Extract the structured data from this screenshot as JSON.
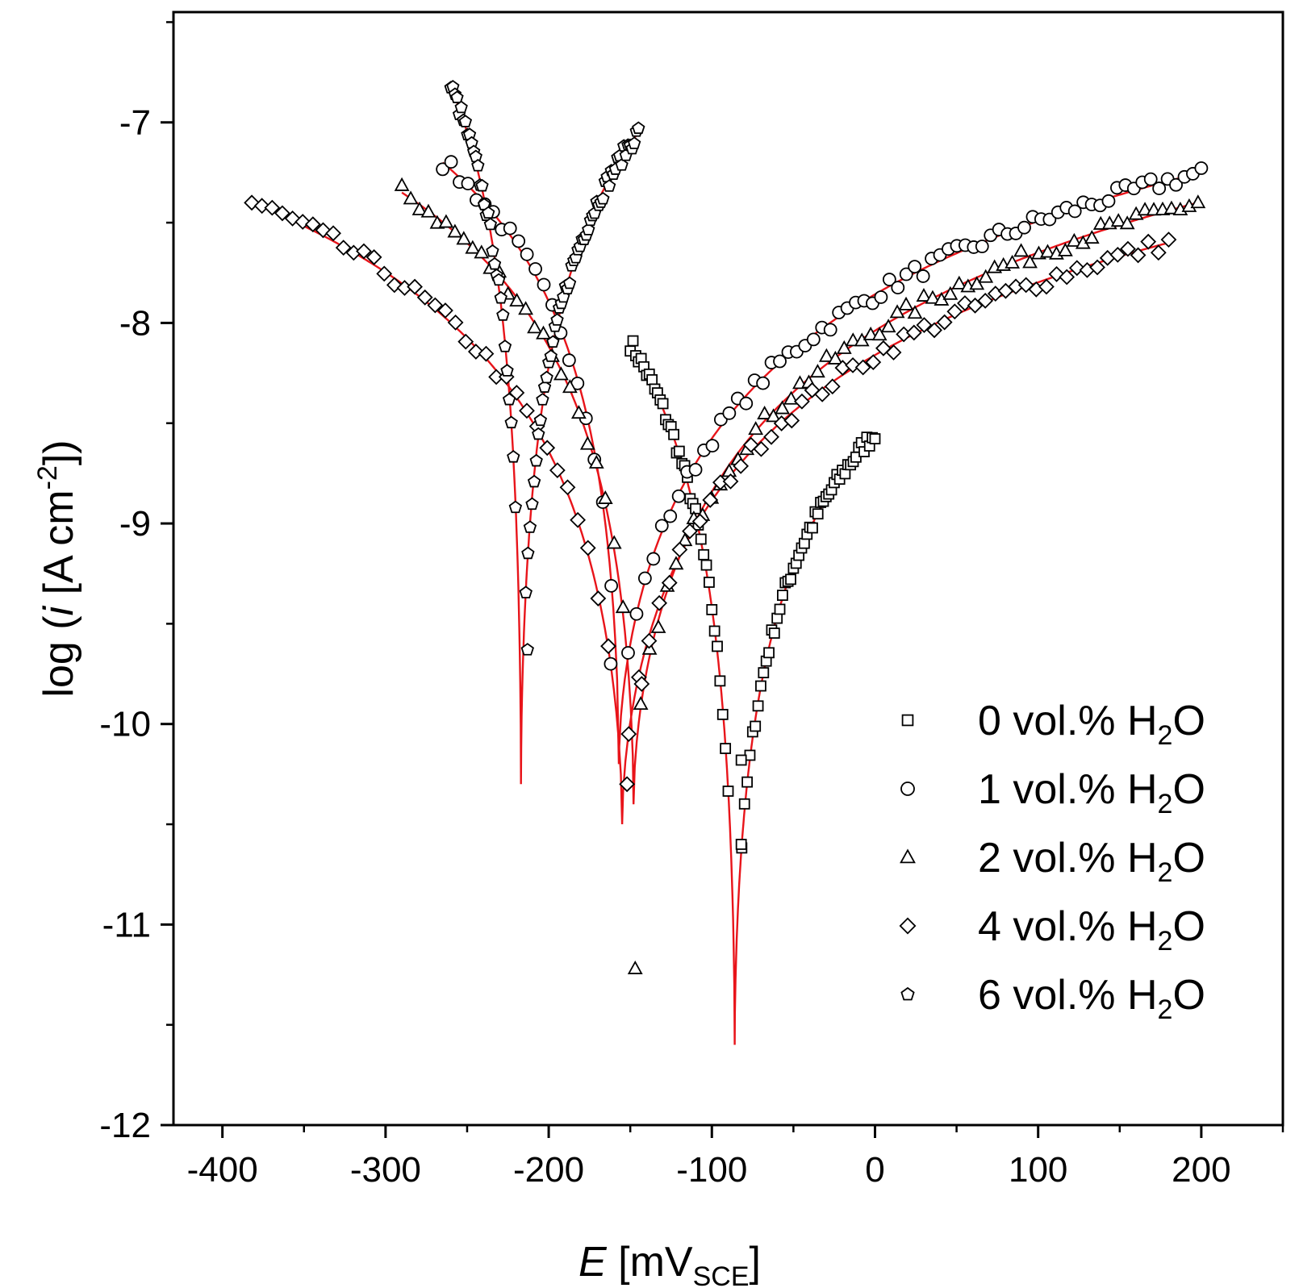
{
  "chart_data": {
    "type": "scatter",
    "title": "",
    "xlabel": {
      "main": "E",
      "unit_prefix": "[mV",
      "unit_sub": "SCE",
      "unit_suffix": "]"
    },
    "ylabel": {
      "prefix": "log (",
      "var": "i",
      "mid": " [A cm",
      "sup": "-2",
      "suffix": "])"
    },
    "xlim": [
      -430,
      250
    ],
    "ylim": [
      -12,
      -6.45
    ],
    "xticks": [
      -400,
      -300,
      -200,
      -100,
      0,
      100,
      200
    ],
    "xtick_labels": [
      "-400",
      "-300",
      "-200",
      "-100",
      "0",
      "100",
      "200"
    ],
    "yticks": [
      -12,
      -11,
      -10,
      -9,
      -8,
      -7
    ],
    "ytick_labels": [
      "-12",
      "-11",
      "-10",
      "-9",
      "-8",
      "-7"
    ],
    "fit_color": "#e8141a",
    "marker_color": "#000000",
    "legend_position": "lower-right",
    "series": [
      {
        "name": "0 vol.% H2O",
        "label_main": "0 vol.% H",
        "label_sub": "2",
        "label_tail": "O",
        "marker": "square",
        "ecorr": -86,
        "cathodic": {
          "start": -150,
          "end_log": -8.1
        },
        "anodic": {
          "end": 0,
          "end_log": -8.55
        },
        "min_log": -11.6
      },
      {
        "name": "1 vol.% H2O",
        "label_main": "1 vol.% H",
        "label_sub": "2",
        "label_tail": "O",
        "marker": "circle",
        "ecorr": -157,
        "cathodic": {
          "start": -265,
          "end_log": -7.2
        },
        "anodic": {
          "end": 200,
          "end_log": -7.25
        },
        "min_log": -10.2
      },
      {
        "name": "2 vol.% H2O",
        "label_main": "2 vol.% H",
        "label_sub": "2",
        "label_tail": "O",
        "marker": "triangle",
        "ecorr": -148,
        "cathodic": {
          "start": -290,
          "end_log": -7.35
        },
        "anodic": {
          "end": 198,
          "end_log": -7.4
        },
        "min_log": -10.4
      },
      {
        "name": "4 vol.% H2O",
        "label_main": "4 vol.% H",
        "label_sub": "2",
        "label_tail": "O",
        "marker": "diamond",
        "ecorr": -155,
        "cathodic": {
          "start": -382,
          "end_log": -7.4
        },
        "anodic": {
          "end": 180,
          "end_log": -7.6
        },
        "min_log": -10.5
      },
      {
        "name": "6 vol.% H2O",
        "label_main": "6 vol.% H",
        "label_sub": "2",
        "label_tail": "O",
        "marker": "pentagon",
        "ecorr": -217,
        "cathodic": {
          "start": -260,
          "end_log": -6.82
        },
        "anodic": {
          "end": -145,
          "end_log": -7.05
        },
        "min_log": -10.3
      }
    ],
    "outliers": [
      {
        "series": "2 vol.% H2O",
        "x": -147,
        "y": -11.22
      },
      {
        "series": "0 vol.% H2O",
        "x": -82,
        "y": -10.6
      },
      {
        "series": "0 vol.% H2O",
        "x": -82,
        "y": -10.18
      },
      {
        "series": "1 vol.% H2O",
        "x": -162,
        "y": -9.7
      },
      {
        "series": "6 vol.% H2O",
        "x": -213,
        "y": -9.63
      },
      {
        "series": "4 vol.% H2O",
        "x": -152,
        "y": -10.3
      },
      {
        "series": "4 vol.% H2O",
        "x": -143,
        "y": -9.8
      }
    ]
  }
}
